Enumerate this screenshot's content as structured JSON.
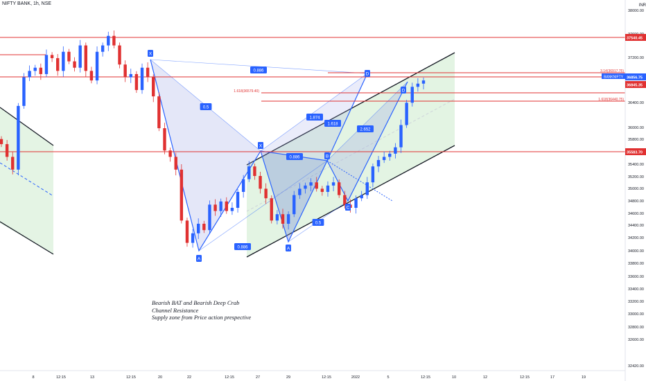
{
  "header": {
    "title": "NIFTY BANK, 1h, NSE"
  },
  "axis": {
    "currency": "INR",
    "price_ticks": [
      "38000.00",
      "37600.00",
      "37200.00",
      "36800.00",
      "36400.00",
      "36000.00",
      "35800.00",
      "35600.00",
      "35400.00",
      "35200.00",
      "35000.00",
      "34800.00",
      "34600.00",
      "34400.00",
      "34200.00",
      "34000.00",
      "33800.00",
      "33600.00",
      "33400.00",
      "33200.00",
      "33000.00",
      "32800.00",
      "32600.00",
      "32420.00"
    ],
    "time_ticks": [
      "8",
      "12:15",
      "13",
      "12:15",
      "20",
      "22",
      "12:15",
      "27",
      "29",
      "12:15",
      "2022",
      "5",
      "12:15",
      "10",
      "12",
      "12:15",
      "17",
      "19"
    ]
  },
  "price_lines": [
    {
      "label": "37540.45",
      "color": "#e03131"
    },
    {
      "label": "35583.70",
      "color": "#e03131"
    }
  ],
  "price_badges": [
    {
      "label": "BANKNIFTY",
      "color": "#2962ff"
    },
    {
      "label": "36856.75",
      "color": "#2962ff"
    },
    {
      "label": "36845.35",
      "color": "#e03131"
    }
  ],
  "level_labels": [
    "1.618(36579.40)",
    "3.14(36917.75)",
    "1.618(36440.75)"
  ],
  "pattern_points": [
    "X",
    "A",
    "B",
    "C",
    "D",
    "X",
    "A",
    "B",
    "C",
    "D"
  ],
  "ratios": [
    "0.886",
    "0.5",
    "1.874",
    "1.618",
    "2.652",
    "0.886",
    "0.886",
    "0.5"
  ],
  "notes": [
    "Bearish BAT and Bearish Deep Crab",
    "Channel Resistance",
    "Supply zone from Price action prespective"
  ],
  "chart_data": {
    "type": "candlestick",
    "symbol": "BANKNIFTY",
    "title": "NIFTY BANK, 1h, NSE",
    "ylim": [
      32400,
      38000
    ],
    "x_tick_labels": [
      "8",
      "12:15",
      "13",
      "12:15",
      "20",
      "22",
      "12:15",
      "27",
      "29",
      "12:15",
      "2022",
      "5",
      "12:15",
      "10",
      "12",
      "12:15",
      "17",
      "19"
    ],
    "horizontal_levels": [
      37540.45,
      36845.35,
      35583.7
    ],
    "last_price": 36856.75,
    "candles_close_path": [
      35900,
      35700,
      35500,
      36500,
      36950,
      37050,
      37100,
      37000,
      37300,
      37250,
      37050,
      37350,
      37200,
      37100,
      37450,
      37050,
      36900,
      37350,
      37450,
      37600,
      37450,
      37150,
      36950,
      37000,
      36750,
      37100,
      36950,
      36650,
      36150,
      35800,
      35700,
      35500,
      34700,
      34350,
      34500,
      34650,
      34550,
      34950,
      34850,
      35000,
      34850,
      34900,
      35150,
      35350,
      35550,
      35400,
      35200,
      35050,
      34700,
      34800,
      34650,
      34800,
      35100,
      35200,
      35250,
      35300,
      35200,
      35150,
      35250,
      35300,
      35100,
      34950,
      34900,
      35050,
      35100,
      35300,
      35550,
      35650,
      35700,
      35750,
      35850,
      36200,
      36550,
      36800,
      36850,
      36900
    ]
  }
}
